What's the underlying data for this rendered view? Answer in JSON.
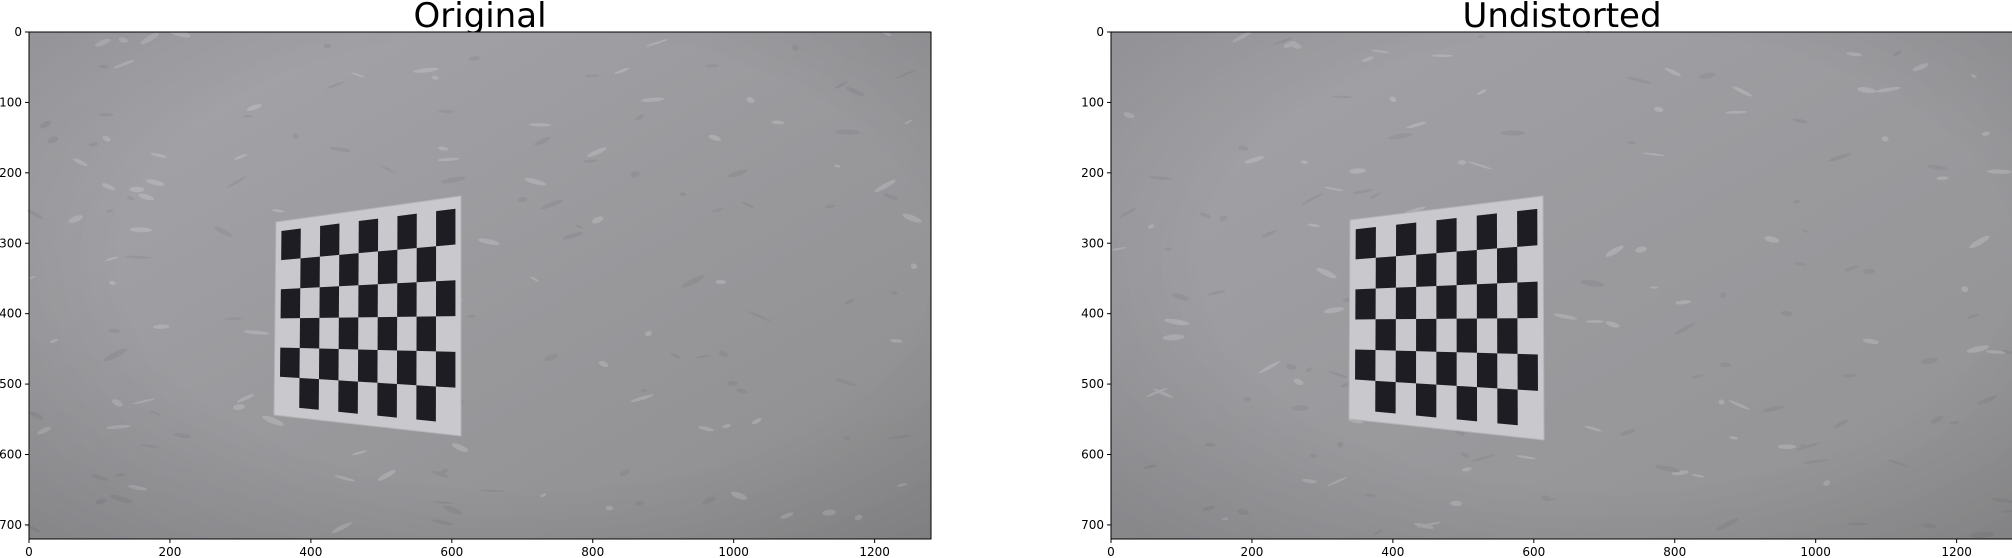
{
  "figure": {
    "panels": [
      {
        "title": "Original",
        "xticks": [
          "0",
          "200",
          "400",
          "600",
          "800",
          "1000",
          "1200"
        ],
        "yticks": [
          "0",
          "100",
          "200",
          "300",
          "400",
          "500",
          "600",
          "700"
        ],
        "xtick_values": [
          0,
          200,
          400,
          600,
          800,
          1000,
          1200
        ],
        "ytick_values": [
          0,
          100,
          200,
          300,
          400,
          500,
          600,
          700
        ],
        "x_range": [
          0,
          1280
        ],
        "y_range": [
          0,
          720
        ],
        "image": {
          "subject": "checkerboard calibration target on gray textured wall",
          "wall_colors": [
            "#a6a5aa",
            "#8e8e90"
          ],
          "board_colors": {
            "dark": "#1e1d23",
            "light": "#c9c8cd"
          }
        }
      },
      {
        "title": "Undistorted",
        "xticks": [
          "0",
          "200",
          "400",
          "600",
          "800",
          "1000",
          "1200"
        ],
        "yticks": [
          "0",
          "100",
          "200",
          "300",
          "400",
          "500",
          "600",
          "700"
        ],
        "xtick_values": [
          0,
          200,
          400,
          600,
          800,
          1000,
          1200
        ],
        "ytick_values": [
          0,
          100,
          200,
          300,
          400,
          500,
          600,
          700
        ],
        "x_range": [
          0,
          1280
        ],
        "y_range": [
          0,
          720
        ],
        "image": {
          "subject": "checkerboard calibration target on gray textured wall",
          "wall_colors": [
            "#a3a2a7",
            "#929294"
          ],
          "board_colors": {
            "dark": "#1e1d23",
            "light": "#c9c8cd"
          }
        }
      }
    ]
  }
}
